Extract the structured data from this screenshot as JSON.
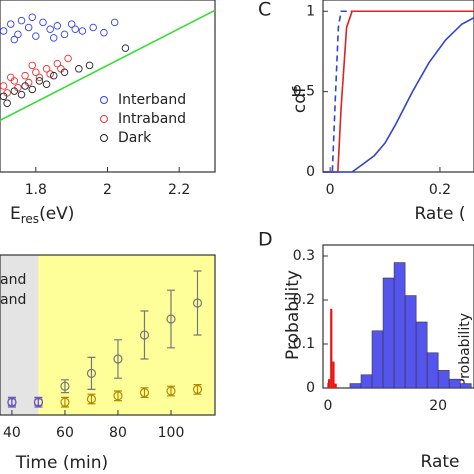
{
  "chart_data": [
    {
      "type": "scatter",
      "xlabel": [
        "E",
        "res",
        "(eV)"
      ],
      "xlim": [
        1.7,
        2.3
      ],
      "ylim": [
        0,
        1
      ],
      "xticks": [
        1.8,
        2,
        2.2
      ],
      "legend": "lower right",
      "reference_line": {
        "x": [
          1.7,
          2.3
        ],
        "values": [
          0.3,
          0.94
        ],
        "color": "#33dd33"
      },
      "series": [
        {
          "name": "Interband",
          "color": "#3344ee",
          "x": [
            1.71,
            1.73,
            1.75,
            1.76,
            1.78,
            1.8,
            1.82,
            1.84,
            1.86,
            1.88,
            1.9,
            1.93,
            1.96,
            1.99,
            2.02,
            1.74,
            1.79,
            1.85,
            1.91
          ],
          "values": [
            0.82,
            0.86,
            0.8,
            0.88,
            0.84,
            0.79,
            0.87,
            0.83,
            0.85,
            0.8,
            0.86,
            0.82,
            0.84,
            0.81,
            0.87,
            0.77,
            0.9,
            0.78,
            0.83
          ]
        },
        {
          "name": "Intraband",
          "color": "#ee3333",
          "x": [
            1.71,
            1.72,
            1.74,
            1.75,
            1.77,
            1.78,
            1.8,
            1.81,
            1.83,
            1.84,
            1.86,
            1.87,
            1.89,
            1.73,
            1.79
          ],
          "values": [
            0.5,
            0.46,
            0.53,
            0.49,
            0.56,
            0.52,
            0.58,
            0.55,
            0.6,
            0.57,
            0.63,
            0.6,
            0.66,
            0.55,
            0.62
          ]
        },
        {
          "name": "Dark",
          "color": "#222222",
          "x": [
            1.71,
            1.72,
            1.74,
            1.76,
            1.77,
            1.79,
            1.81,
            1.83,
            1.85,
            1.88,
            1.92,
            1.95,
            2.05
          ],
          "values": [
            0.44,
            0.4,
            0.47,
            0.45,
            0.5,
            0.48,
            0.53,
            0.51,
            0.56,
            0.58,
            0.6,
            0.62,
            0.72
          ]
        }
      ]
    },
    {
      "type": "line",
      "panel_label": "C",
      "xlabel": "Rate (",
      "ylabel": "cdf",
      "xlim": [
        -0.013,
        0.262
      ],
      "ylim": [
        0,
        1.07
      ],
      "xticks": [
        0,
        0.2
      ],
      "yticks": [
        0,
        0.5,
        1
      ],
      "series": [
        {
          "color": "#3344cc",
          "dashed": true,
          "x": [
            -0.013,
            0.004,
            0.01,
            0.015,
            0.02,
            0.262
          ],
          "values": [
            0,
            0,
            0.5,
            0.9,
            1,
            1
          ]
        },
        {
          "color": "#dd2222",
          "dashed": false,
          "x": [
            -0.013,
            0.014,
            0.02,
            0.03,
            0.04,
            0.262
          ],
          "values": [
            0,
            0,
            0.4,
            0.9,
            1,
            1
          ]
        },
        {
          "color": "#3344cc",
          "dashed": false,
          "x": [
            -0.013,
            0.04,
            0.06,
            0.08,
            0.1,
            0.12,
            0.15,
            0.18,
            0.21,
            0.24,
            0.262
          ],
          "values": [
            0,
            0,
            0.05,
            0.1,
            0.18,
            0.3,
            0.5,
            0.68,
            0.82,
            0.92,
            0.96
          ]
        }
      ]
    },
    {
      "type": "errorbar",
      "xlabel": "Time (min)",
      "legend_texts": [
        "and",
        "and"
      ],
      "xlim": [
        35.5,
        116.6
      ],
      "ylim": [
        0,
        1
      ],
      "xticks": [
        40,
        60,
        80,
        100
      ],
      "regions": [
        {
          "to": 50,
          "color": "#e4e4e4"
        },
        {
          "from": 50,
          "color": "#ffff99"
        }
      ],
      "series": [
        {
          "color": "#777777",
          "x": [
            40,
            50,
            60,
            70,
            80,
            90,
            100,
            110
          ],
          "values": [
            0.08,
            0.08,
            0.18,
            0.26,
            0.35,
            0.5,
            0.6,
            0.7
          ],
          "errors": [
            0.02,
            0.02,
            0.04,
            0.1,
            0.12,
            0.15,
            0.18,
            0.2
          ]
        },
        {
          "color": "#b08a00",
          "x": [
            60,
            70,
            80,
            90,
            100,
            110
          ],
          "values": [
            0.08,
            0.1,
            0.12,
            0.14,
            0.15,
            0.16
          ],
          "errors": [
            0.03,
            0.03,
            0.03,
            0.03,
            0.03,
            0.03
          ]
        },
        {
          "color": "#6655cc",
          "x": [
            40,
            50
          ],
          "values": [
            0.08,
            0.08
          ],
          "errors": [
            0.03,
            0.03
          ]
        }
      ]
    },
    {
      "type": "histogram",
      "panel_label": "D",
      "xlabel": "Rate",
      "ylabel": "Probability",
      "inset_text": "Probability",
      "xlim": [
        -0.9,
        26.5
      ],
      "ylim": [
        0,
        0.325
      ],
      "xticks": [
        0,
        20
      ],
      "yticks": [
        0,
        0.1,
        0.2,
        0.3
      ],
      "series": [
        {
          "color": "#5555ee",
          "bins": [
            4,
            6,
            8,
            10,
            12,
            14,
            16,
            18,
            20,
            22,
            24,
            26
          ],
          "values": [
            0.01,
            0.03,
            0.13,
            0.25,
            0.285,
            0.21,
            0.15,
            0.08,
            0.04,
            0.02,
            0.01
          ]
        },
        {
          "color": "#ee1111",
          "bins": [
            0,
            0.4,
            0.8,
            1.2,
            1.6
          ],
          "values": [
            0.02,
            0.18,
            0.06,
            0.01
          ]
        }
      ]
    }
  ]
}
